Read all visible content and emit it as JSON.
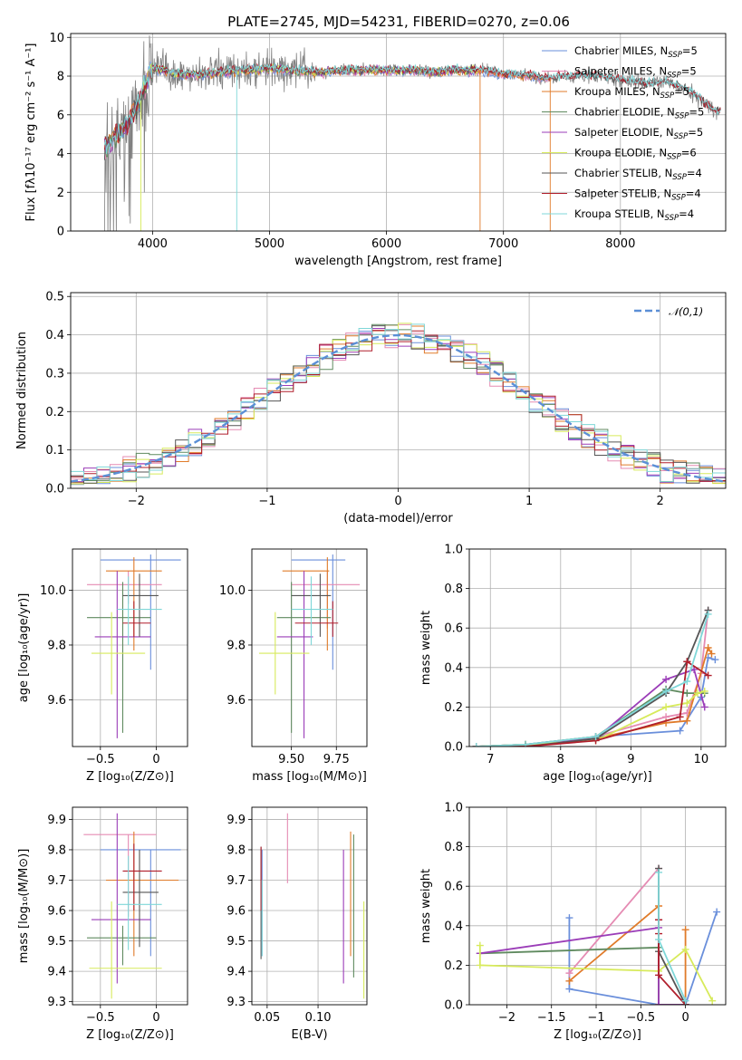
{
  "title": "PLATE=2745, MJD=54231, FIBERID=0270, z=0.06",
  "colors": {
    "chabrier_miles": "#6a8fdb",
    "salpeter_miles": "#e58bb3",
    "kroupa_miles": "#e07b2a",
    "chabrier_elodie": "#5f8a5f",
    "salpeter_elodie": "#9b3db8",
    "kroupa_elodie": "#d7ea5b",
    "chabrier_stelib": "#555555",
    "salpeter_stelib": "#b01f2c",
    "kroupa_stelib": "#7fd7d8",
    "data": "#808080",
    "gauss": "#5b8fd6",
    "grid": "#b0b0b0"
  },
  "chart_data": [
    {
      "id": "spectrum",
      "type": "line",
      "xlabel": "wavelength [Angstrom, rest frame]",
      "ylabel": "Flux [fλ10⁻¹⁷ erg cm⁻² s⁻¹ A⁻¹]",
      "xlim": [
        3300,
        8900
      ],
      "ylim": [
        0,
        10.2
      ],
      "xticks": [
        4000,
        5000,
        6000,
        7000,
        8000
      ],
      "yticks": [
        0,
        2,
        4,
        6,
        8,
        10
      ],
      "legend_position": "right",
      "legend": [
        {
          "key": "chabrier_miles",
          "label": "Chabrier MILES, N",
          "sub": "SSP",
          "tail": "=5"
        },
        {
          "key": "salpeter_miles",
          "label": "Salpeter MILES, N",
          "sub": "SSP",
          "tail": "=5"
        },
        {
          "key": "kroupa_miles",
          "label": "Kroupa MILES, N",
          "sub": "SSP",
          "tail": "=5"
        },
        {
          "key": "chabrier_elodie",
          "label": "Chabrier ELODIE, N",
          "sub": "SSP",
          "tail": "=5"
        },
        {
          "key": "salpeter_elodie",
          "label": "Salpeter ELODIE, N",
          "sub": "SSP",
          "tail": "=5"
        },
        {
          "key": "kroupa_elodie",
          "label": "Kroupa ELODIE, N",
          "sub": "SSP",
          "tail": "=6"
        },
        {
          "key": "chabrier_stelib",
          "label": "Chabrier STELIB, N",
          "sub": "SSP",
          "tail": "=4"
        },
        {
          "key": "salpeter_stelib",
          "label": "Salpeter STELIB, N",
          "sub": "SSP",
          "tail": "=4"
        },
        {
          "key": "kroupa_stelib",
          "label": "Kroupa STELIB, N",
          "sub": "SSP",
          "tail": "=4"
        }
      ],
      "continuum_x": [
        3600,
        3700,
        3800,
        3900,
        4000,
        4100,
        4200,
        4400,
        4600,
        4800,
        5000,
        5200,
        5400,
        5600,
        5800,
        6000,
        6200,
        6400,
        6600,
        6800,
        7000,
        7200,
        7400,
        7600,
        7800,
        8000,
        8200,
        8400,
        8600,
        8800
      ],
      "continuum_y": [
        4.3,
        5.0,
        5.6,
        7.0,
        8.4,
        8.3,
        8.1,
        8.1,
        8.2,
        8.3,
        8.4,
        8.3,
        8.2,
        8.3,
        8.3,
        8.3,
        8.3,
        8.2,
        8.3,
        8.3,
        8.1,
        8.0,
        7.9,
        8.0,
        8.0,
        7.8,
        7.6,
        7.7,
        7.2,
        6.2
      ],
      "dips": [
        {
          "x": 3900,
          "key": "kroupa_elodie"
        },
        {
          "x": 4720,
          "key": "kroupa_stelib"
        },
        {
          "x": 6800,
          "key": "kroupa_miles"
        },
        {
          "x": 7400,
          "key": "kroupa_miles"
        }
      ]
    },
    {
      "id": "residuals",
      "type": "line",
      "xlabel": "(data-model)/error",
      "ylabel": "Normed distribution",
      "xlim": [
        -2.5,
        2.5
      ],
      "ylim": [
        0,
        0.51
      ],
      "xticks": [
        -2,
        -1,
        0,
        1,
        2
      ],
      "yticks": [
        0.0,
        0.1,
        0.2,
        0.3,
        0.4,
        0.5
      ],
      "legend": "𝒩(0,1)",
      "legend_position": "upper right",
      "bin_width": 0.1
    },
    {
      "id": "age_vs_Z",
      "type": "scatter",
      "xlabel": "Z [log₁₀(Z/Z⊙)]",
      "ylabel": "age [log₁₀(age/yr)]",
      "xlim": [
        -0.75,
        0.28
      ],
      "ylim": [
        9.43,
        10.15
      ],
      "xticks": [
        -0.5,
        0.0
      ],
      "yticks": [
        9.6,
        9.8,
        10.0
      ],
      "points": [
        {
          "key": "chabrier_miles",
          "x": -0.05,
          "y": 10.11,
          "xl": -0.5,
          "xh": 0.22,
          "yl": 9.71,
          "yh": 10.13
        },
        {
          "key": "salpeter_miles",
          "x": -0.25,
          "y": 10.02,
          "xl": -0.62,
          "xh": 0.05,
          "yl": 9.95,
          "yh": 10.07
        },
        {
          "key": "kroupa_miles",
          "x": -0.2,
          "y": 10.07,
          "xl": -0.45,
          "xh": 0.05,
          "yl": 9.78,
          "yh": 10.12
        },
        {
          "key": "chabrier_elodie",
          "x": -0.3,
          "y": 9.9,
          "xl": -0.62,
          "xh": -0.05,
          "yl": 9.48,
          "yh": 10.03
        },
        {
          "key": "salpeter_elodie",
          "x": -0.35,
          "y": 9.83,
          "xl": -0.55,
          "xh": -0.05,
          "yl": 9.46,
          "yh": 10.07
        },
        {
          "key": "kroupa_elodie",
          "x": -0.4,
          "y": 9.77,
          "xl": -0.58,
          "xh": -0.1,
          "yl": 9.62,
          "yh": 9.92
        },
        {
          "key": "chabrier_stelib",
          "x": -0.15,
          "y": 9.98,
          "xl": -0.3,
          "xh": 0.02,
          "yl": 9.83,
          "yh": 10.06
        },
        {
          "key": "salpeter_stelib",
          "x": -0.2,
          "y": 9.88,
          "xl": -0.3,
          "xh": -0.05,
          "yl": 9.83,
          "yh": 9.96
        },
        {
          "key": "kroupa_stelib",
          "x": -0.25,
          "y": 9.93,
          "xl": -0.35,
          "xh": 0.05,
          "yl": 9.8,
          "yh": 10.05
        }
      ]
    },
    {
      "id": "age_vs_mass",
      "type": "scatter",
      "xlabel": "mass [log₁₀(M/M⊙)]",
      "ylabel": "",
      "xlim": [
        9.28,
        9.92
      ],
      "ylim": [
        9.43,
        10.15
      ],
      "xticks": [
        9.5,
        9.75
      ],
      "tick_labels": [
        "9.50",
        "9.75"
      ],
      "yticks": [
        9.6,
        9.8,
        10.0
      ],
      "points": [
        {
          "key": "chabrier_miles",
          "x": 9.73,
          "y": 10.11,
          "xl": 9.5,
          "xh": 9.8,
          "yl": 9.71,
          "yh": 10.13
        },
        {
          "key": "salpeter_miles",
          "x": 9.7,
          "y": 10.02,
          "xl": 9.5,
          "xh": 9.88,
          "yl": 9.86,
          "yh": 10.07
        },
        {
          "key": "kroupa_miles",
          "x": 9.7,
          "y": 10.07,
          "xl": 9.45,
          "xh": 9.71,
          "yl": 9.78,
          "yh": 10.12
        },
        {
          "key": "chabrier_elodie",
          "x": 9.5,
          "y": 9.9,
          "xl": 9.42,
          "xh": 9.72,
          "yl": 9.48,
          "yh": 10.03
        },
        {
          "key": "salpeter_elodie",
          "x": 9.57,
          "y": 9.83,
          "xl": 9.42,
          "xh": 9.62,
          "yl": 9.46,
          "yh": 10.07
        },
        {
          "key": "kroupa_elodie",
          "x": 9.41,
          "y": 9.77,
          "xl": 9.32,
          "xh": 9.6,
          "yl": 9.62,
          "yh": 9.92
        },
        {
          "key": "chabrier_stelib",
          "x": 9.66,
          "y": 9.98,
          "xl": 9.5,
          "xh": 9.72,
          "yl": 9.83,
          "yh": 10.06
        },
        {
          "key": "salpeter_stelib",
          "x": 9.73,
          "y": 9.88,
          "xl": 9.52,
          "xh": 9.76,
          "yl": 9.83,
          "yh": 9.96
        },
        {
          "key": "kroupa_stelib",
          "x": 9.61,
          "y": 9.93,
          "xl": 9.5,
          "xh": 9.73,
          "yl": 9.8,
          "yh": 10.05
        }
      ]
    },
    {
      "id": "massweight_vs_age",
      "type": "line",
      "xlabel": "age [log₁₀(age/yr)]",
      "ylabel": "mass weight",
      "xlim": [
        6.7,
        10.35
      ],
      "ylim": [
        0,
        1.0
      ],
      "xticks": [
        7,
        8,
        9,
        10
      ],
      "yticks": [
        0.0,
        0.2,
        0.4,
        0.6,
        0.8,
        1.0
      ],
      "series": [
        {
          "key": "chabrier_miles",
          "x": [
            6.8,
            7.5,
            8.5,
            9.7,
            10.0,
            10.1,
            10.2
          ],
          "y": [
            0.0,
            0.01,
            0.05,
            0.08,
            0.25,
            0.45,
            0.44
          ]
        },
        {
          "key": "salpeter_miles",
          "x": [
            6.8,
            7.5,
            8.5,
            9.5,
            9.8,
            10.0,
            10.1
          ],
          "y": [
            0.0,
            0.0,
            0.05,
            0.15,
            0.17,
            0.37,
            0.69
          ]
        },
        {
          "key": "kroupa_miles",
          "x": [
            6.8,
            7.5,
            8.5,
            9.5,
            9.8,
            10.1,
            10.15
          ],
          "y": [
            0.0,
            0.01,
            0.04,
            0.12,
            0.13,
            0.5,
            0.47
          ]
        },
        {
          "key": "chabrier_elodie",
          "x": [
            6.8,
            7.5,
            8.5,
            9.5,
            9.8,
            10.05
          ],
          "y": [
            0.0,
            0.01,
            0.05,
            0.29,
            0.27,
            0.27
          ]
        },
        {
          "key": "salpeter_elodie",
          "x": [
            6.8,
            7.5,
            8.5,
            9.5,
            9.9,
            10.05
          ],
          "y": [
            0.0,
            0.01,
            0.04,
            0.34,
            0.39,
            0.2
          ]
        },
        {
          "key": "kroupa_elodie",
          "x": [
            6.8,
            7.5,
            8.5,
            9.5,
            9.8,
            9.95,
            10.05
          ],
          "y": [
            0.0,
            0.01,
            0.03,
            0.2,
            0.22,
            0.27,
            0.28
          ]
        },
        {
          "key": "chabrier_stelib",
          "x": [
            6.8,
            7.5,
            8.5,
            9.5,
            9.8,
            10.1
          ],
          "y": [
            0.0,
            0.0,
            0.04,
            0.27,
            0.43,
            0.69
          ]
        },
        {
          "key": "salpeter_stelib",
          "x": [
            6.8,
            7.5,
            8.5,
            9.7,
            9.8,
            10.1
          ],
          "y": [
            0.0,
            0.0,
            0.03,
            0.15,
            0.43,
            0.36
          ]
        },
        {
          "key": "kroupa_stelib",
          "x": [
            6.8,
            7.5,
            8.5,
            9.5,
            9.8,
            10.1
          ],
          "y": [
            0.0,
            0.01,
            0.05,
            0.28,
            0.33,
            0.67
          ]
        }
      ]
    },
    {
      "id": "mass_vs_Z",
      "type": "scatter",
      "xlabel": "Z [log₁₀(Z/Z⊙)]",
      "ylabel": "mass [log₁₀(M/M⊙)]",
      "xlim": [
        -0.75,
        0.28
      ],
      "ylim": [
        9.29,
        9.94
      ],
      "xticks": [
        -0.5,
        0.0
      ],
      "yticks": [
        9.3,
        9.4,
        9.5,
        9.6,
        9.7,
        9.8,
        9.9
      ],
      "points": [
        {
          "key": "chabrier_miles",
          "x": -0.05,
          "y": 9.8,
          "xl": -0.5,
          "xh": 0.22,
          "yl": 9.45,
          "yh": 9.8
        },
        {
          "key": "salpeter_miles",
          "x": -0.25,
          "y": 9.85,
          "xl": -0.65,
          "xh": 0.0,
          "yl": 9.58,
          "yh": 9.85
        },
        {
          "key": "kroupa_miles",
          "x": -0.2,
          "y": 9.7,
          "xl": -0.45,
          "xh": 0.2,
          "yl": 9.45,
          "yh": 9.86
        },
        {
          "key": "chabrier_elodie",
          "x": -0.3,
          "y": 9.51,
          "xl": -0.62,
          "xh": 0.0,
          "yl": 9.42,
          "yh": 9.55
        },
        {
          "key": "salpeter_elodie",
          "x": -0.35,
          "y": 9.57,
          "xl": -0.58,
          "xh": -0.05,
          "yl": 9.36,
          "yh": 9.92
        },
        {
          "key": "kroupa_elodie",
          "x": -0.4,
          "y": 9.41,
          "xl": -0.6,
          "xh": 0.05,
          "yl": 9.31,
          "yh": 9.63
        },
        {
          "key": "chabrier_stelib",
          "x": -0.15,
          "y": 9.66,
          "xl": -0.3,
          "xh": 0.02,
          "yl": 9.48,
          "yh": 9.8
        },
        {
          "key": "salpeter_stelib",
          "x": -0.2,
          "y": 9.73,
          "xl": -0.3,
          "xh": 0.05,
          "yl": 9.6,
          "yh": 9.82
        },
        {
          "key": "kroupa_stelib",
          "x": -0.25,
          "y": 9.62,
          "xl": -0.35,
          "xh": 0.05,
          "yl": 9.47,
          "yh": 9.78
        }
      ]
    },
    {
      "id": "mass_vs_ebv",
      "type": "scatter",
      "xlabel": "E(B-V)",
      "ylabel": "",
      "xlim": [
        0.035,
        0.148
      ],
      "ylim": [
        9.29,
        9.94
      ],
      "xticks": [
        0.05,
        0.1
      ],
      "tick_labels": [
        "0.05",
        "0.10"
      ],
      "yticks": [
        9.3,
        9.4,
        9.5,
        9.6,
        9.7,
        9.8,
        9.9
      ],
      "points": [
        {
          "key": "chabrier_miles",
          "x": 0.045,
          "y": 9.62,
          "xl": 0.045,
          "xh": 0.045,
          "yl": 9.45,
          "yh": 9.8
        },
        {
          "key": "salpeter_miles",
          "x": 0.07,
          "y": 9.8,
          "xl": 0.07,
          "xh": 0.07,
          "yl": 9.69,
          "yh": 9.92
        },
        {
          "key": "kroupa_miles",
          "x": 0.132,
          "y": 9.7,
          "xl": 0.132,
          "xh": 0.132,
          "yl": 9.45,
          "yh": 9.86
        },
        {
          "key": "chabrier_elodie",
          "x": 0.135,
          "y": 9.6,
          "xl": 0.135,
          "xh": 0.135,
          "yl": 9.38,
          "yh": 9.85
        },
        {
          "key": "salpeter_elodie",
          "x": 0.125,
          "y": 9.57,
          "xl": 0.125,
          "xh": 0.125,
          "yl": 9.36,
          "yh": 9.8
        },
        {
          "key": "kroupa_elodie",
          "x": 0.145,
          "y": 9.47,
          "xl": 0.145,
          "xh": 0.145,
          "yl": 9.31,
          "yh": 9.63
        },
        {
          "key": "chabrier_stelib",
          "x": 0.044,
          "y": 9.63,
          "xl": 0.044,
          "xh": 0.044,
          "yl": 9.44,
          "yh": 9.81
        },
        {
          "key": "salpeter_stelib",
          "x": 0.044,
          "y": 9.7,
          "xl": 0.044,
          "xh": 0.044,
          "yl": 9.6,
          "yh": 9.81
        },
        {
          "key": "kroupa_stelib",
          "x": 0.045,
          "y": 9.58,
          "xl": 0.045,
          "xh": 0.045,
          "yl": 9.45,
          "yh": 9.7
        }
      ]
    },
    {
      "id": "massweight_vs_Z",
      "type": "line",
      "xlabel": "Z [log₁₀(Z/Z⊙)]",
      "ylabel": "mass weight",
      "xlim": [
        -2.42,
        0.45
      ],
      "ylim": [
        0,
        1.0
      ],
      "xticks": [
        -2.0,
        -1.5,
        -1.0,
        -0.5,
        0.0
      ],
      "yticks": [
        0.0,
        0.2,
        0.4,
        0.6,
        0.8,
        1.0
      ],
      "series": [
        {
          "key": "chabrier_miles",
          "x": [
            -1.3,
            -1.3,
            -0.3,
            0.0,
            0.35
          ],
          "y": [
            0.44,
            0.08,
            0.0,
            0.0,
            0.47
          ]
        },
        {
          "key": "salpeter_miles",
          "x": [
            -1.3,
            -0.3,
            -0.3,
            0.0
          ],
          "y": [
            0.16,
            0.69,
            0.0,
            0.0
          ]
        },
        {
          "key": "kroupa_miles",
          "x": [
            -1.3,
            -0.3,
            -0.3,
            0.0,
            0.0
          ],
          "y": [
            0.12,
            0.5,
            0.0,
            0.0,
            0.38
          ]
        },
        {
          "key": "chabrier_elodie",
          "x": [
            -2.3,
            -0.3,
            -0.3,
            0.0
          ],
          "y": [
            0.26,
            0.29,
            0.0,
            0.0
          ]
        },
        {
          "key": "salpeter_elodie",
          "x": [
            -2.3,
            -0.3,
            -0.3,
            0.0
          ],
          "y": [
            0.26,
            0.39,
            0.0,
            0.0
          ]
        },
        {
          "key": "kroupa_elodie",
          "x": [
            -2.3,
            -2.3,
            -0.3,
            0.0,
            0.3
          ],
          "y": [
            0.3,
            0.2,
            0.17,
            0.28,
            0.02
          ]
        },
        {
          "key": "chabrier_stelib",
          "x": [
            -0.3,
            -0.3,
            -0.3,
            0.0
          ],
          "y": [
            0.69,
            0.43,
            0.27,
            0.0
          ]
        },
        {
          "key": "salpeter_stelib",
          "x": [
            -0.3,
            -0.3,
            -0.3,
            0.0
          ],
          "y": [
            0.43,
            0.36,
            0.15,
            0.0
          ]
        },
        {
          "key": "kroupa_stelib",
          "x": [
            -0.3,
            -0.3,
            0.0
          ],
          "y": [
            0.67,
            0.33,
            0.02
          ]
        }
      ]
    }
  ]
}
